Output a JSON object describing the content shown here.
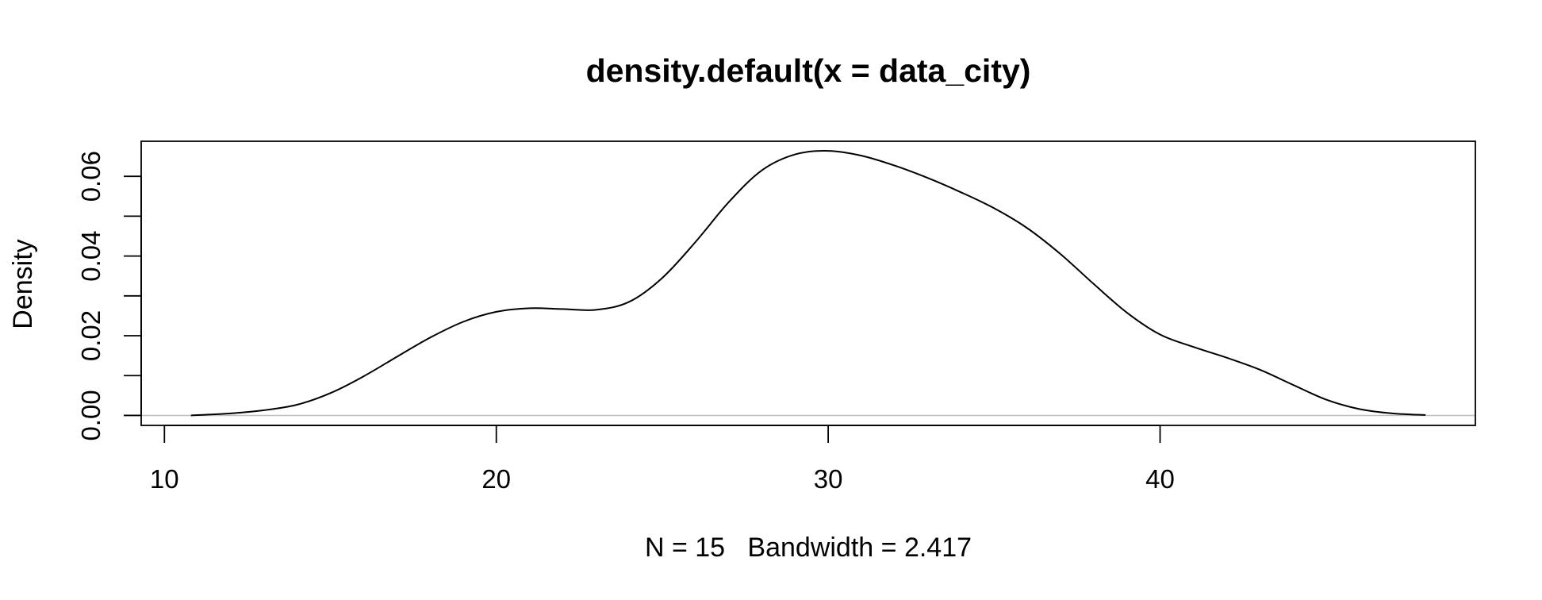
{
  "chart_data": {
    "type": "line",
    "title": "density.default(x = data_city)",
    "xlabel": "N = 15   Bandwidth = 2.417",
    "ylabel": "Density",
    "xlim": [
      9.3,
      49.5
    ],
    "ylim": [
      -0.0025,
      0.0688
    ],
    "x_ticks": [
      10,
      20,
      30,
      40
    ],
    "x_tick_labels": [
      "10",
      "20",
      "30",
      "40"
    ],
    "y_ticks": [
      0.0,
      0.01,
      0.02,
      0.03,
      0.04,
      0.05,
      0.06
    ],
    "y_tick_labels": [
      "0.00",
      "0.02",
      "0.04",
      "0.06"
    ],
    "y_labeled_ticks": [
      0.0,
      0.02,
      0.04,
      0.06
    ],
    "zero_line": true,
    "grid": false,
    "legend": "none",
    "line_color": "#000000",
    "zero_line_color": "#BEBEBE",
    "series": [
      {
        "x": [
          10.8,
          12.0,
          13.0,
          14.0,
          15.0,
          16.0,
          17.0,
          18.0,
          19.0,
          20.0,
          21.0,
          22.0,
          23.0,
          24.0,
          25.0,
          26.0,
          27.0,
          28.0,
          29.0,
          30.0,
          31.0,
          32.0,
          33.0,
          34.0,
          35.0,
          36.0,
          37.0,
          38.0,
          39.0,
          40.0,
          41.0,
          42.0,
          43.0,
          44.0,
          45.0,
          46.0,
          47.0,
          48.0
        ],
        "y": [
          0.0,
          0.0005,
          0.0013,
          0.0027,
          0.0056,
          0.0098,
          0.0147,
          0.0195,
          0.0235,
          0.026,
          0.0269,
          0.0267,
          0.0265,
          0.0285,
          0.0345,
          0.0435,
          0.0535,
          0.0615,
          0.0655,
          0.0664,
          0.0652,
          0.0627,
          0.0596,
          0.056,
          0.052,
          0.047,
          0.0405,
          0.033,
          0.0258,
          0.0203,
          0.0172,
          0.0145,
          0.0115,
          0.0077,
          0.004,
          0.0016,
          0.0005,
          0.0001
        ]
      }
    ]
  }
}
